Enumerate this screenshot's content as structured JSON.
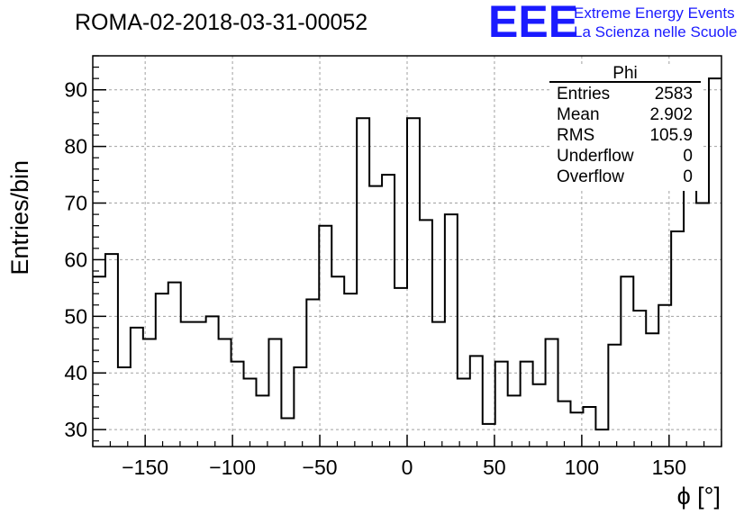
{
  "chart_data": {
    "type": "bar",
    "style": "step-histogram",
    "title": "ROMA-02-2018-03-31-00052",
    "xlabel": "ϕ [°]",
    "ylabel": "Entries/bin",
    "xlim": [
      -180,
      180
    ],
    "ylim": [
      27,
      96
    ],
    "bin_width": 7.2,
    "x_ticks": [
      -150,
      -100,
      -50,
      0,
      50,
      100,
      150
    ],
    "x_tick_labels": [
      "−150",
      "−100",
      "−50",
      "0",
      "50",
      "100",
      "150"
    ],
    "y_ticks": [
      30,
      40,
      50,
      60,
      70,
      80,
      90
    ],
    "y_tick_labels": [
      "30",
      "40",
      "50",
      "60",
      "70",
      "80",
      "90"
    ],
    "grid": true,
    "values": [
      57,
      61,
      41,
      48,
      46,
      54,
      56,
      49,
      49,
      50,
      46,
      42,
      39,
      36,
      46,
      32,
      41,
      53,
      66,
      57,
      54,
      85,
      73,
      75,
      55,
      85,
      67,
      49,
      68,
      39,
      43,
      31,
      42,
      36,
      42,
      38,
      46,
      35,
      33,
      34,
      30,
      45,
      57,
      51,
      47,
      52,
      65,
      75,
      70,
      92
    ],
    "stats_box": {
      "title": "Phi",
      "rows": [
        {
          "label": "Entries",
          "value": "2583"
        },
        {
          "label": "Mean",
          "value": "2.902"
        },
        {
          "label": "RMS",
          "value": "105.9"
        },
        {
          "label": "Underflow",
          "value": "0"
        },
        {
          "label": "Overflow",
          "value": "0"
        }
      ]
    }
  },
  "logo": {
    "text": "EEE",
    "line1": "Extreme Energy Events",
    "line2": "La Scienza nelle Scuole",
    "color": "#1a1aff"
  }
}
